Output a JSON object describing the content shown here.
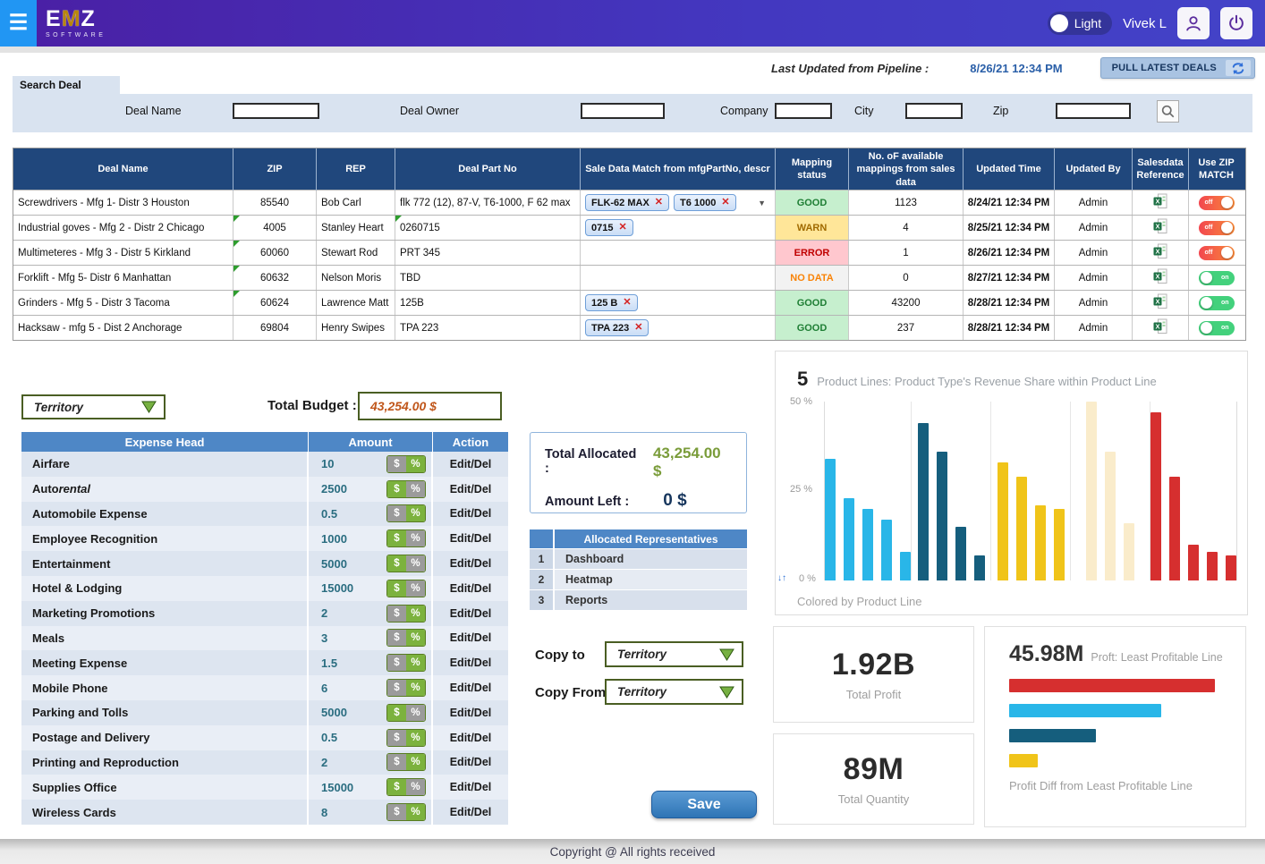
{
  "topbar": {
    "logo_text": "EMZ",
    "logo_subtext": "SOFTWARE",
    "theme_toggle_label": "Light",
    "user_name": "Vivek L"
  },
  "pipeline": {
    "label": "Last Updated from Pipeline :",
    "timestamp": "8/26/21 12:34 PM",
    "pull_button_label": "PULL LATEST DEALS"
  },
  "search": {
    "tab_label": "Search Deal",
    "fields": [
      {
        "label": "Deal Name",
        "value": ""
      },
      {
        "label": "Deal Owner",
        "value": ""
      },
      {
        "label": "Company",
        "value": ""
      },
      {
        "label": "City",
        "value": ""
      },
      {
        "label": "Zip",
        "value": ""
      }
    ]
  },
  "deals_table": {
    "headers": [
      "Deal Name",
      "ZIP",
      "REP",
      "Deal Part No",
      "Sale Data Match from mfgPartNo, descr",
      "Mapping status",
      "No. oF available mappings from sales data",
      "Updated Time",
      "Updated By",
      "Salesdata Reference",
      "Use ZIP MATCH"
    ],
    "toggle_on_label": "on",
    "toggle_off_label": "off",
    "rows": [
      {
        "deal_name": "Screwdrivers - Mfg 1- Distr 3 Houston",
        "zip": "85540",
        "rep": "Bob Carl",
        "part_no": "flk 772 (12), 87-V, T6-1000, F 62 max",
        "chips": [
          "FLK-62 MAX",
          "T6 1000"
        ],
        "has_dropdown": true,
        "status": "GOOD",
        "status_class": "good",
        "mappings": "1123",
        "updated_time": "8/24/21 12:34 PM",
        "updated_by": "Admin",
        "zip_match": "off",
        "zip_flag": false,
        "part_flag": false
      },
      {
        "deal_name": "Industrial goves - Mfg 2 - Distr 2 Chicago",
        "zip": "4005",
        "rep": "Stanley Heart",
        "part_no": "0260715",
        "chips": [
          "0715"
        ],
        "has_dropdown": false,
        "status": "WARN",
        "status_class": "warn",
        "mappings": "4",
        "updated_time": "8/25/21 12:34 PM",
        "updated_by": "Admin",
        "zip_match": "off",
        "zip_flag": true,
        "part_flag": true
      },
      {
        "deal_name": "Multimeteres - Mfg 3 - Distr 5 Kirkland",
        "zip": "60060",
        "rep": "Stewart Rod",
        "part_no": "PRT 345",
        "chips": [],
        "has_dropdown": false,
        "status": "ERROR",
        "status_class": "error",
        "mappings": "1",
        "updated_time": "8/26/21 12:34 PM",
        "updated_by": "Admin",
        "zip_match": "off",
        "zip_flag": true,
        "part_flag": false
      },
      {
        "deal_name": "Forklift - Mfg 5- Distr 6 Manhattan",
        "zip": "60632",
        "rep": "Nelson Moris",
        "part_no": "TBD",
        "chips": [],
        "has_dropdown": false,
        "status": "NO DATA",
        "status_class": "nodata",
        "mappings": "0",
        "updated_time": "8/27/21 12:34 PM",
        "updated_by": "Admin",
        "zip_match": "on",
        "zip_flag": true,
        "part_flag": false
      },
      {
        "deal_name": "Grinders - Mfg 5 - Distr 3 Tacoma",
        "zip": "60624",
        "rep": "Lawrence Matt",
        "part_no": "125B",
        "chips": [
          "125 B"
        ],
        "has_dropdown": false,
        "status": "GOOD",
        "status_class": "good",
        "mappings": "43200",
        "updated_time": "8/28/21 12:34 PM",
        "updated_by": "Admin",
        "zip_match": "on",
        "zip_flag": true,
        "part_flag": false
      },
      {
        "deal_name": "Hacksaw - mfg 5 - Dist 2 Anchorage",
        "zip": "69804",
        "rep": "Henry Swipes",
        "part_no": "TPA 223",
        "chips": [
          "TPA 223"
        ],
        "has_dropdown": false,
        "status": "GOOD",
        "status_class": "good",
        "mappings": "237",
        "updated_time": "8/28/21 12:34 PM",
        "updated_by": "Admin",
        "zip_match": "on",
        "zip_flag": false,
        "part_flag": false
      }
    ]
  },
  "budget": {
    "territory_value": "Territory",
    "total_budget_label": "Total Budget :",
    "total_budget_value": "43,254.00 $"
  },
  "expense_table": {
    "headers": [
      "Expense Head",
      "Amount",
      "Action"
    ],
    "action_label": "Edit/Del",
    "dollar_label": "$",
    "percent_label": "%",
    "rows": [
      {
        "label": "Airfare",
        "amount": "10",
        "mode": "percent"
      },
      {
        "label": "Auto rental",
        "italic_suffix": "rental",
        "amount": "2500",
        "mode": "dollar"
      },
      {
        "label": "Automobile Expense",
        "amount": "0.5",
        "mode": "percent"
      },
      {
        "label": "Employee Recognition",
        "amount": "1000",
        "mode": "dollar"
      },
      {
        "label": "Entertainment",
        "amount": "5000",
        "mode": "dollar"
      },
      {
        "label": "Hotel & Lodging",
        "amount": "15000",
        "mode": "dollar"
      },
      {
        "label": "Marketing Promotions",
        "amount": "2",
        "mode": "percent"
      },
      {
        "label": "Meals",
        "amount": "3",
        "mode": "percent"
      },
      {
        "label": "Meeting Expense",
        "amount": "1.5",
        "mode": "percent"
      },
      {
        "label": "Mobile Phone",
        "amount": "6",
        "mode": "percent"
      },
      {
        "label": "Parking and Tolls",
        "amount": "5000",
        "mode": "dollar"
      },
      {
        "label": "Postage and Delivery",
        "amount": "0.5",
        "mode": "percent"
      },
      {
        "label": "Printing and Reproduction",
        "amount": "2",
        "mode": "percent"
      },
      {
        "label": "Supplies Office",
        "amount": "15000",
        "mode": "dollar"
      },
      {
        "label": "Wireless Cards",
        "amount": "8",
        "mode": "percent"
      }
    ]
  },
  "allocation": {
    "total_allocated_label": "Total Allocated :",
    "total_allocated_value": "43,254.00 $",
    "amount_left_label": "Amount Left :",
    "amount_left_value": "0 $"
  },
  "representatives": {
    "header": "Allocated Representatives",
    "rows": [
      {
        "num": "1",
        "name": "Dashboard"
      },
      {
        "num": "2",
        "name": "Heatmap"
      },
      {
        "num": "3",
        "name": "Reports"
      }
    ]
  },
  "copy_controls": {
    "copy_to_label": "Copy to",
    "copy_from_label": "Copy From",
    "copy_to_value": "Territory",
    "copy_from_value": "Territory"
  },
  "save_label": "Save",
  "chart_data": [
    {
      "type": "bar",
      "title_prefix": "5",
      "title": "Product Lines: Product Type's Revenue Share within Product Line",
      "footer": "Colored by Product Line",
      "ylim": [
        0,
        50
      ],
      "yticks": [
        "50 %",
        "25 %",
        "0 %"
      ],
      "sort_icons": "↓↑",
      "grid": "vertical group separators",
      "groups": [
        {
          "color": "#29b6e8",
          "values": [
            34,
            23,
            20,
            17,
            8
          ]
        },
        {
          "color": "#155e7d",
          "values": [
            44,
            36,
            15,
            7
          ]
        },
        {
          "color": "#f0c419",
          "values": [
            33,
            29,
            21,
            20
          ]
        },
        {
          "color": "#faeccb",
          "values": [
            50,
            36,
            16
          ]
        },
        {
          "color": "#d62f2f",
          "values": [
            47,
            29,
            10,
            8,
            7
          ]
        }
      ]
    },
    {
      "type": "bar",
      "orientation": "horizontal",
      "value": "45.98M",
      "value_label": "Proft: Least Profitable Line",
      "caption": "Profit Diff from Least Profitable Line",
      "bars": [
        {
          "color": "#d62f2f",
          "pct": 100
        },
        {
          "color": "#29b6e8",
          "pct": 74
        },
        {
          "color": "#155e7d",
          "pct": 42
        },
        {
          "color": "#f0c419",
          "pct": 14
        }
      ]
    }
  ],
  "kpi_cards": [
    {
      "value": "1.92B",
      "label": "Total Profit"
    },
    {
      "value": "89M",
      "label": "Total Quantity"
    }
  ],
  "footer_text": "Copyright @  All rights received"
}
